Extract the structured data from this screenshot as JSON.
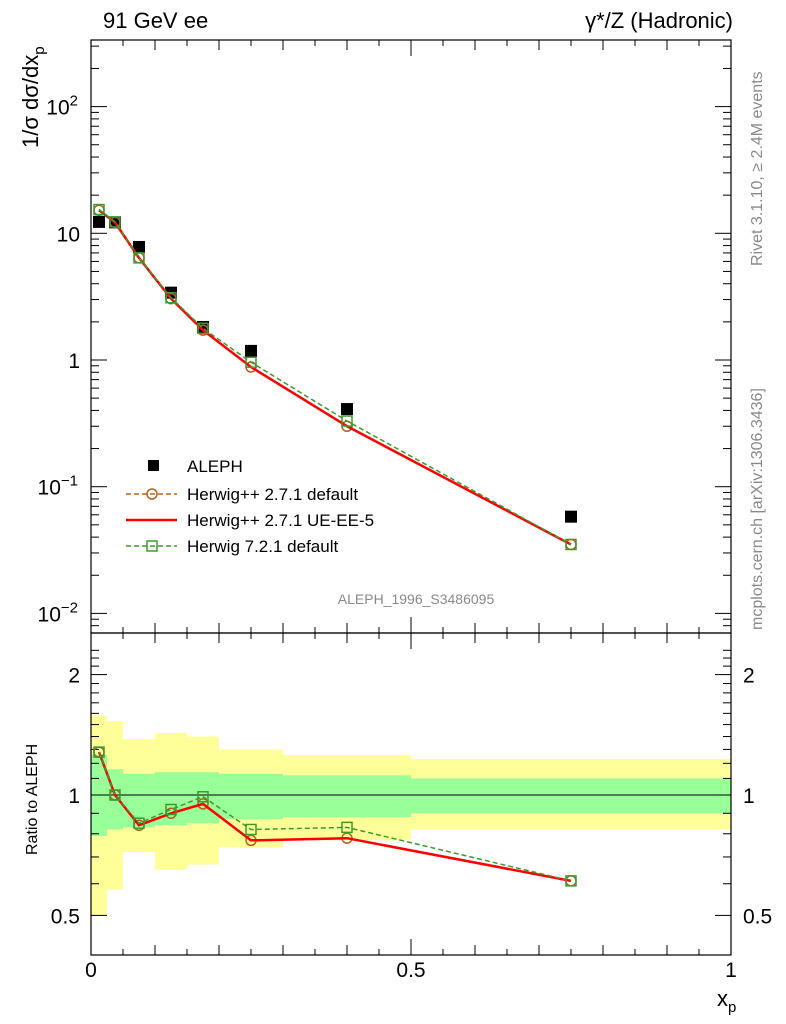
{
  "header": {
    "left_title": "91 GeV ee",
    "right_title": "γ*/Z (Hadronic)"
  },
  "side_labels": {
    "rivet": "Rivet 3.1.10, ≥ 2.4M events",
    "mcplots": "mcplots.cern.ch [arXiv:1306.3436]"
  },
  "watermark": "ALEPH_1996_S3486095",
  "chart_data": [
    {
      "type": "line",
      "name": "main",
      "ylabel": "1/σ dσ/dx_p",
      "yscale": "log",
      "ylim": [
        0.007,
        400
      ],
      "xlim": [
        0,
        1
      ],
      "yticks": [
        {
          "value": 0.01,
          "base": "10",
          "exp": "−2"
        },
        {
          "value": 0.1,
          "base": "10",
          "exp": "−1"
        },
        {
          "value": 1,
          "base": "1",
          "exp": ""
        },
        {
          "value": 10,
          "base": "10",
          "exp": ""
        },
        {
          "value": 100,
          "base": "10",
          "exp": "2"
        }
      ],
      "legend_position": "lower-left",
      "data": {
        "x": [
          0.0125,
          0.0375,
          0.075,
          0.125,
          0.175,
          0.25,
          0.4,
          0.75
        ],
        "series": [
          {
            "name": "ALEPH",
            "marker": "filled-square",
            "color": "#000000",
            "values": [
              12.3,
              12.2,
              7.8,
              3.4,
              1.82,
              1.18,
              0.41,
              0.058
            ]
          },
          {
            "name": "Herwig++ 2.7.1 default",
            "marker": "open-circle",
            "style": "dashed",
            "color": "#b5621c",
            "values": [
              15.2,
              12.2,
              6.4,
              3.05,
              1.72,
              0.88,
              0.3,
              0.035
            ]
          },
          {
            "name": "Herwig++ 2.7.1 UE-EE-5",
            "marker": "none",
            "style": "solid",
            "color": "#ff0000",
            "values": [
              15.2,
              12.2,
              6.4,
              3.05,
              1.72,
              0.88,
              0.3,
              0.035
            ]
          },
          {
            "name": "Herwig 7.2.1 default",
            "marker": "open-square",
            "style": "dashed",
            "color": "#3c9a2f",
            "values": [
              15.4,
              12.3,
              6.4,
              3.1,
              1.78,
              0.96,
              0.33,
              0.035
            ]
          }
        ]
      }
    },
    {
      "type": "line",
      "name": "ratio",
      "ylabel": "Ratio to ALEPH",
      "xlabel": "x_p",
      "yscale": "log",
      "ylim": [
        0.41,
        2.5
      ],
      "xlim": [
        0,
        1
      ],
      "yticks": [
        0.5,
        1,
        2
      ],
      "xticks": [
        {
          "value": 0,
          "label": "0"
        },
        {
          "value": 0.5,
          "label": "0.5"
        },
        {
          "value": 1,
          "label": "1"
        }
      ],
      "reference_line": 1,
      "bands": {
        "bin_edges": [
          0,
          0.025,
          0.05,
          0.1,
          0.15,
          0.2,
          0.3,
          0.5,
          1.0
        ],
        "inner": {
          "color": "#99ff99",
          "lo": [
            0.79,
            0.82,
            0.83,
            0.84,
            0.85,
            0.87,
            0.88,
            0.9
          ],
          "hi": [
            1.26,
            1.16,
            1.13,
            1.14,
            1.14,
            1.13,
            1.12,
            1.1
          ]
        },
        "outer": {
          "color": "#ffff99",
          "lo": [
            0.5,
            0.58,
            0.72,
            0.65,
            0.67,
            0.74,
            0.77,
            0.82
          ],
          "hi": [
            1.58,
            1.53,
            1.38,
            1.43,
            1.4,
            1.3,
            1.26,
            1.23
          ]
        }
      },
      "data": {
        "x": [
          0.0125,
          0.0375,
          0.075,
          0.125,
          0.175,
          0.25,
          0.4,
          0.75
        ],
        "series": [
          {
            "name": "Herwig++ 2.7.1 default",
            "marker": "open-circle",
            "style": "dashed",
            "color": "#b5621c",
            "values": [
              1.28,
              1.0,
              0.84,
              0.9,
              0.95,
              0.77,
              0.78,
              0.61
            ]
          },
          {
            "name": "Herwig++ 2.7.1 UE-EE-5",
            "marker": "none",
            "style": "solid",
            "color": "#ff0000",
            "values": [
              1.28,
              1.0,
              0.84,
              0.9,
              0.95,
              0.77,
              0.78,
              0.61
            ]
          },
          {
            "name": "Herwig 7.2.1 default",
            "marker": "open-square",
            "style": "dashed",
            "color": "#3c9a2f",
            "values": [
              1.28,
              1.0,
              0.85,
              0.92,
              0.99,
              0.82,
              0.83,
              0.61
            ]
          }
        ]
      }
    }
  ]
}
